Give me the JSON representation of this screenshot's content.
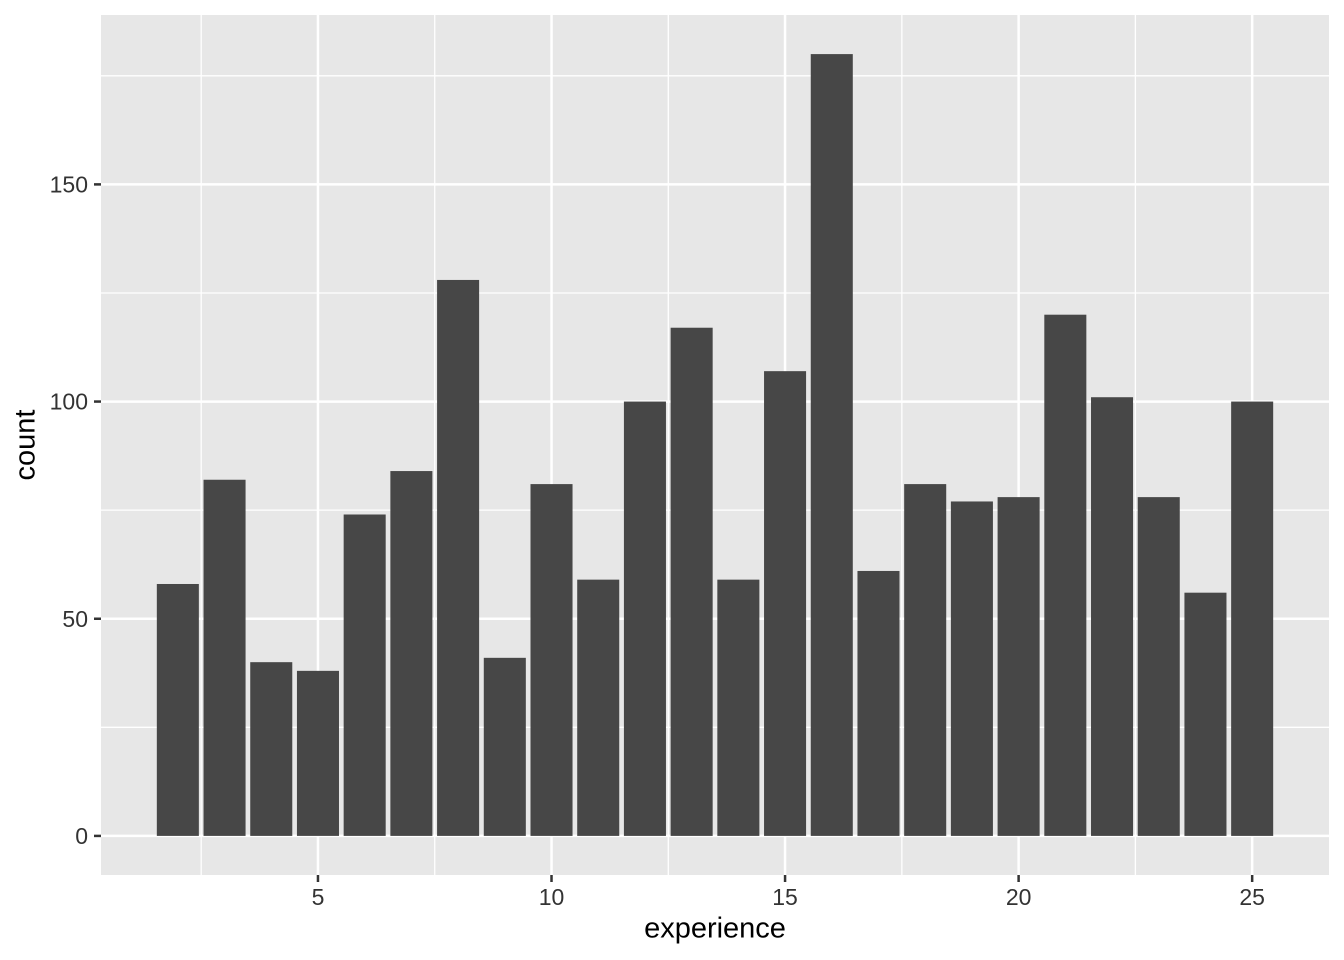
{
  "figure": {
    "background": "#ffffff",
    "description": "Histogram of count by experience, gray ggplot-style theme"
  },
  "chart_data": {
    "type": "bar",
    "title": "",
    "xlabel": "experience",
    "ylabel": "count",
    "x": [
      2,
      3,
      4,
      5,
      6,
      7,
      8,
      9,
      10,
      11,
      12,
      13,
      14,
      15,
      16,
      17,
      18,
      19,
      20,
      21,
      22,
      23,
      24,
      25
    ],
    "values": [
      58,
      82,
      40,
      38,
      74,
      84,
      128,
      41,
      81,
      59,
      100,
      117,
      59,
      107,
      180,
      61,
      81,
      77,
      78,
      120,
      101,
      78,
      56,
      100
    ],
    "bar_width": 0.9,
    "xlim": [
      0.355,
      26.645
    ],
    "ylim": [
      -9,
      189
    ],
    "x_major_ticks": [
      5,
      10,
      15,
      20,
      25
    ],
    "x_minor_gridlines": [
      2.5,
      7.5,
      12.5,
      17.5,
      22.5
    ],
    "y_major_ticks": [
      0,
      50,
      100,
      150
    ],
    "y_minor_gridlines": [
      25,
      75,
      125,
      175
    ],
    "grid": "white major and minor gridlines on gray panel",
    "legend": "none",
    "colors": {
      "bar_fill": "#474747",
      "panel_background": "#E7E7E7",
      "gridline": "#FFFFFF",
      "tick_mark": "#333333",
      "tick_label": "#333333",
      "axis_title": "#000000"
    }
  }
}
